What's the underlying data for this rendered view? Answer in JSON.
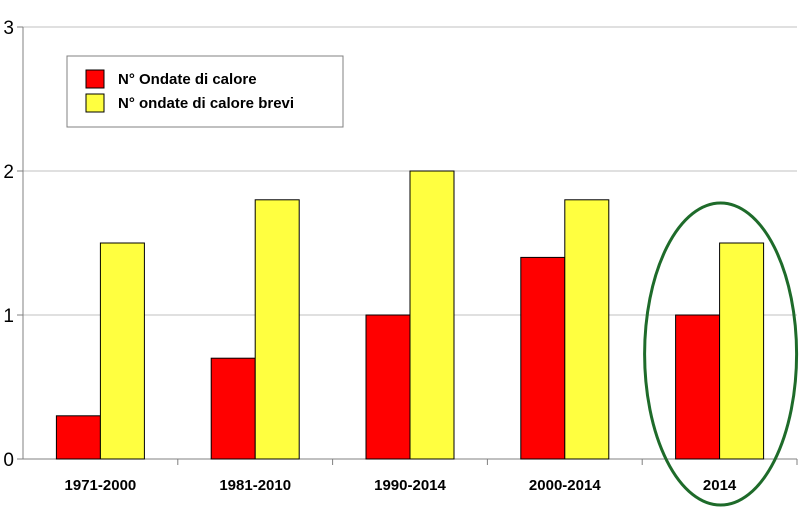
{
  "chart_data": {
    "type": "bar",
    "categories": [
      "1971-2000",
      "1981-2010",
      "1990-2014",
      "2000-2014",
      "2014"
    ],
    "series": [
      {
        "name": "N° Ondate di calore",
        "color": "#ff0000",
        "values": [
          0.3,
          0.7,
          1.0,
          1.4,
          1.0
        ]
      },
      {
        "name": "N° ondate di calore brevi",
        "color": "#ffff40",
        "values": [
          1.5,
          1.8,
          2.0,
          1.8,
          1.5
        ]
      }
    ],
    "title": "",
    "xlabel": "",
    "ylabel": "",
    "ylim": [
      0,
      3
    ],
    "yticks": [
      "0",
      "1",
      "2",
      "3"
    ],
    "grid": true,
    "legend_position": "top-left",
    "highlight": {
      "category": "2014",
      "shape": "ellipse",
      "color": "#1e6b2a"
    }
  }
}
